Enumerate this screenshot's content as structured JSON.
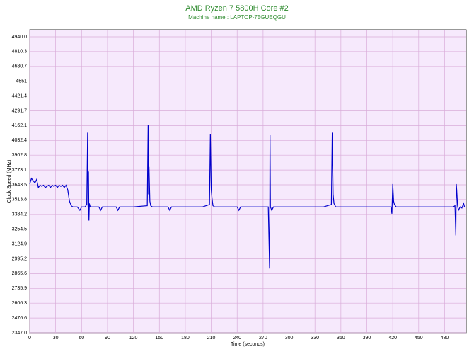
{
  "chart_data": {
    "type": "line",
    "title": "AMD Ryzen 7 5800H Core #2",
    "subtitle": "Machine name : LAPTOP-75GUEQGU",
    "x_label": "Time (seconds)",
    "y_label": "Clock Speed (MHz)",
    "xlim": [
      0,
      505
    ],
    "ylim": [
      2347,
      5002
    ],
    "xticks": [
      0,
      30,
      60,
      90,
      120,
      150,
      180,
      210,
      240,
      270,
      300,
      330,
      360,
      390,
      420,
      450,
      480
    ],
    "yticks": [
      {
        "value": 2347,
        "label": "2347.0"
      },
      2476.6,
      2606.3,
      2735.9,
      2865.6,
      2995.2,
      3124.9,
      3254.5,
      3384.2,
      3513.8,
      3643.5,
      3773.1,
      3902.8,
      4032.4,
      4162.1,
      4291.7,
      4421.4,
      4551,
      4680.7,
      4810.3,
      {
        "value": 4940,
        "label": "4940.0"
      }
    ],
    "grid": true,
    "series": [
      {
        "color": "#0000cc",
        "x": [
          0,
          2,
          4,
          6,
          8,
          10,
          12,
          14,
          16,
          18,
          20,
          22,
          24,
          26,
          28,
          30,
          32,
          34,
          36,
          38,
          40,
          42,
          44,
          46,
          48,
          50,
          55,
          58,
          60,
          64,
          66,
          67,
          67.5,
          68,
          68.5,
          69,
          70,
          80,
          82,
          84,
          100,
          102,
          104,
          120,
          136,
          137,
          137.5,
          138,
          139,
          140,
          142,
          160,
          162,
          164,
          180,
          200,
          208,
          209,
          210,
          211,
          212,
          214,
          230,
          240,
          242,
          244,
          260,
          276,
          277,
          277.5,
          278,
          278.5,
          280,
          282,
          300,
          320,
          340,
          349,
          350,
          351,
          352,
          354,
          370,
          390,
          400,
          410,
          418,
          419,
          420,
          421,
          422,
          424,
          440,
          460,
          480,
          490,
          492,
          493,
          493.5,
          494,
          495,
          496,
          498,
          500,
          502,
          503
        ],
        "values": [
          3650,
          3700,
          3680,
          3660,
          3690,
          3620,
          3640,
          3630,
          3640,
          3620,
          3630,
          3640,
          3620,
          3640,
          3630,
          3640,
          3620,
          3640,
          3630,
          3640,
          3620,
          3640,
          3600,
          3500,
          3460,
          3450,
          3450,
          3420,
          3450,
          3450,
          3470,
          4100,
          3450,
          3760,
          3330,
          3480,
          3450,
          3450,
          3420,
          3450,
          3450,
          3420,
          3450,
          3450,
          3460,
          4170,
          3560,
          3800,
          3500,
          3460,
          3450,
          3450,
          3420,
          3450,
          3450,
          3450,
          3470,
          4090,
          3600,
          3520,
          3460,
          3450,
          3450,
          3450,
          3420,
          3450,
          3450,
          3450,
          3100,
          2910,
          4080,
          3450,
          3420,
          3450,
          3450,
          3450,
          3450,
          3470,
          4100,
          3560,
          3480,
          3450,
          3450,
          3450,
          3450,
          3450,
          3450,
          3390,
          3650,
          3500,
          3470,
          3450,
          3450,
          3450,
          3450,
          3450,
          3460,
          3200,
          3650,
          3600,
          3460,
          3420,
          3450,
          3440,
          3480,
          3450
        ]
      }
    ]
  }
}
